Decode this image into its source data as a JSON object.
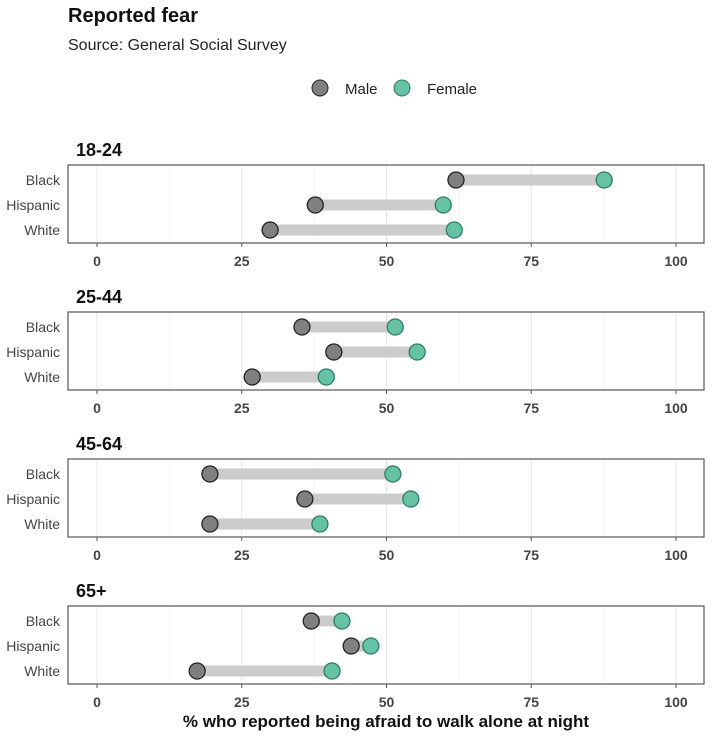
{
  "chart_data": {
    "type": "dumbbell",
    "title": "Reported fear",
    "subtitle": "Source: General Social Survey",
    "xlabel": "% who reported being afraid to walk alone at night",
    "xlim": [
      0,
      100
    ],
    "xticks": [
      0,
      25,
      50,
      75,
      100
    ],
    "grid": true,
    "legend_position": "top",
    "series": [
      {
        "name": "Male",
        "color": "#808080"
      },
      {
        "name": "Female",
        "color": "#66c2a5"
      }
    ],
    "categories": [
      "Black",
      "Hispanic",
      "White"
    ],
    "panels": [
      {
        "title": "18-24",
        "male": [
          62.0,
          37.7,
          29.9
        ],
        "female": [
          87.6,
          59.8,
          61.7
        ]
      },
      {
        "title": "25-44",
        "male": [
          35.4,
          40.9,
          26.8
        ],
        "female": [
          51.5,
          55.3,
          39.6
        ]
      },
      {
        "title": "45-64",
        "male": [
          19.5,
          35.9,
          19.5
        ],
        "female": [
          51.1,
          54.2,
          38.5
        ]
      },
      {
        "title": "65+",
        "male": [
          37.0,
          43.9,
          17.3
        ],
        "female": [
          42.3,
          47.3,
          40.6
        ]
      }
    ]
  }
}
